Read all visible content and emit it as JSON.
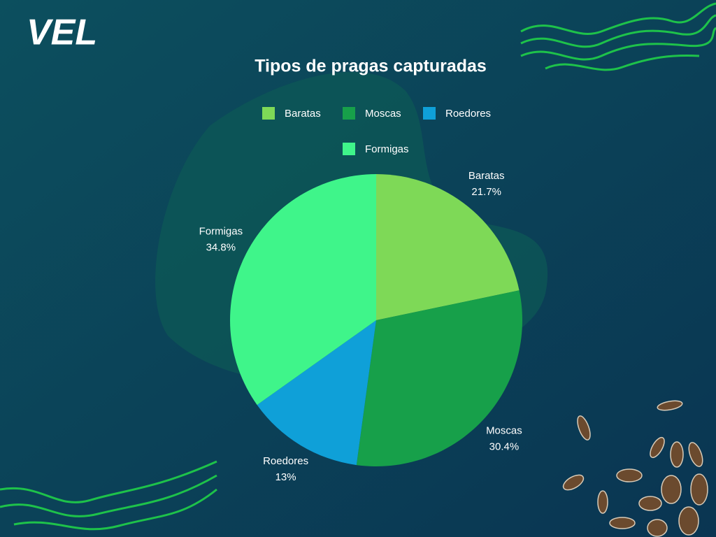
{
  "logo": "VEL",
  "chart_data": {
    "type": "pie",
    "title": "Tipos de pragas capturadas",
    "categories": [
      "Baratas",
      "Moscas",
      "Roedores",
      "Formigas"
    ],
    "values": [
      21.7,
      30.4,
      13,
      34.8
    ],
    "value_labels": [
      "21.7%",
      "30.4%",
      "13%",
      "34.8%"
    ],
    "colors": [
      "#7ed957",
      "#17a04a",
      "#0fa0d8",
      "#3ff58a"
    ],
    "legend": "top"
  }
}
